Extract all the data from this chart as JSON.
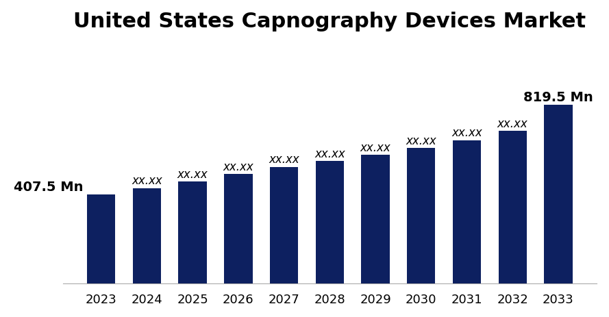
{
  "title": "United States Capnography Devices Market",
  "years": [
    2023,
    2024,
    2025,
    2026,
    2027,
    2028,
    2029,
    2030,
    2031,
    2032,
    2033
  ],
  "values": [
    407.5,
    438,
    468,
    502,
    535,
    562,
    590,
    622,
    658,
    700,
    819.5
  ],
  "bar_color": "#0d2060",
  "bar_annotations": [
    "407.5 Mn",
    "xx.xx",
    "xx.xx",
    "xx.xx",
    "xx.xx",
    "xx.xx",
    "xx.xx",
    "xx.xx",
    "xx.xx",
    "xx.xx",
    "819.5 Mn"
  ],
  "title_fontsize": 22,
  "tick_fontsize": 13,
  "annotation_fontsize": 12,
  "background_color": "#ffffff",
  "ylim": [
    0,
    1100
  ],
  "bar_width": 0.62
}
